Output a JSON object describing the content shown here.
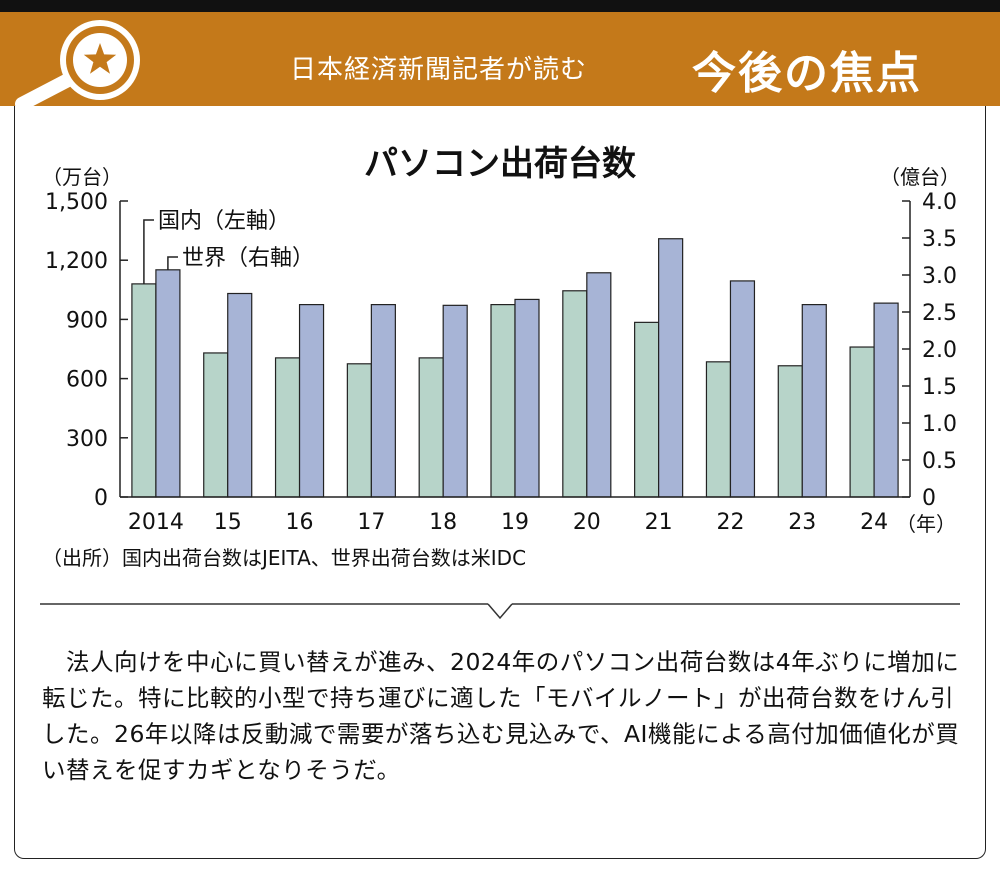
{
  "banner": {
    "subtitle": "日本経済新聞記者が読む",
    "title": "今後の焦点"
  },
  "colors": {
    "banner": "#c4791a",
    "domestic": "#b7d4c9",
    "world": "#a7b4d6"
  },
  "icons": {
    "badge": "magnifier-star-icon"
  },
  "chart_data": {
    "type": "bar",
    "title": "パソコン出荷台数",
    "left_axis_unit": "（万台）",
    "right_axis_unit": "（億台）",
    "x_unit": "（年）",
    "categories": [
      "2014",
      "15",
      "16",
      "17",
      "18",
      "19",
      "20",
      "21",
      "22",
      "23",
      "24"
    ],
    "left_ticks": [
      "0",
      "300",
      "600",
      "900",
      "1,200",
      "1,500"
    ],
    "right_ticks": [
      "0",
      "0.5",
      "1.0",
      "1.5",
      "2.0",
      "2.5",
      "3.0",
      "3.5",
      "4.0"
    ],
    "ylim_left": [
      0,
      1500
    ],
    "ylim_right": [
      0,
      4.0
    ],
    "series": [
      {
        "name": "国内（左軸）",
        "axis": "left",
        "values": [
          1080,
          730,
          705,
          675,
          705,
          975,
          1045,
          885,
          685,
          665,
          760
        ]
      },
      {
        "name": "世界（右軸）",
        "axis": "right",
        "values": [
          3.07,
          2.75,
          2.6,
          2.6,
          2.59,
          2.67,
          3.03,
          3.49,
          2.92,
          2.6,
          2.62
        ]
      }
    ],
    "source": "（出所）国内出荷台数はJEITA、世界出荷台数は米IDC",
    "legend": "inline-top-left",
    "grid": false
  },
  "article": {
    "text": "　法人向けを中心に買い替えが進み、2024年のパソコン出荷台数は4年ぶりに増加に転じた。特に比較的小型で持ち運びに適した「モバイルノート」が出荷台数をけん引した。26年以降は反動減で需要が落ち込む見込みで、AI機能による高付加価値化が買い替えを促すカギとなりそうだ。"
  }
}
